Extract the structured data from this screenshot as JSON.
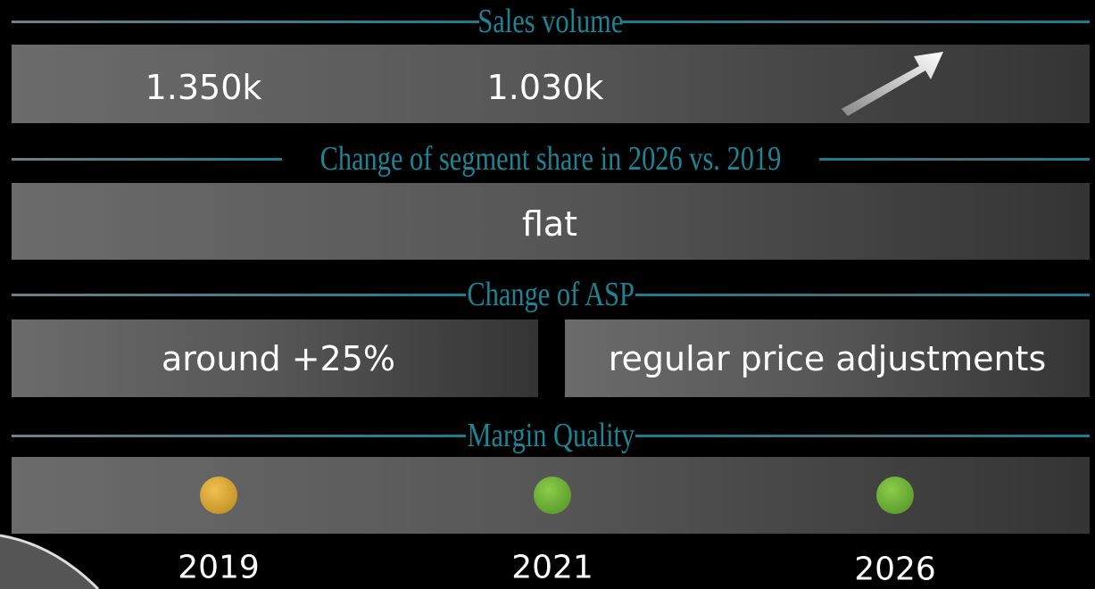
{
  "sections": [
    {
      "title": "Sales volume",
      "cells": [
        "1.350k",
        "1.030k"
      ]
    },
    {
      "title": "Change of segment share in 2026 vs. 2019",
      "cells": [
        "flat"
      ]
    },
    {
      "title": "Change of ASP",
      "cells": [
        "around +25%",
        "regular price adjustments"
      ]
    },
    {
      "title": "Margin Quality"
    }
  ],
  "years": [
    "2019",
    "2021",
    "2026"
  ]
}
